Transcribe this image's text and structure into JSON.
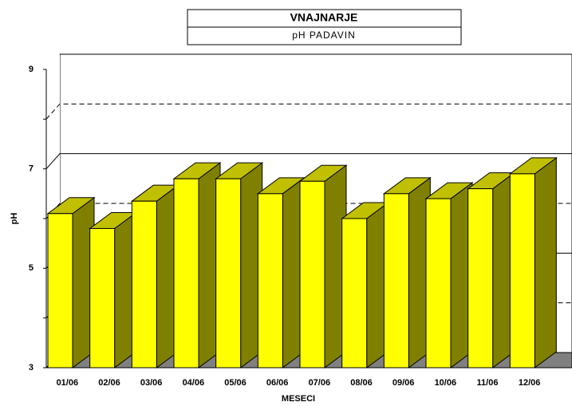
{
  "chart_data": {
    "type": "bar3d",
    "title": "VNAJNARJE",
    "subtitle": "pH PADAVIN",
    "x_label": "MESECI",
    "y_label": "pH",
    "categories": [
      "01/06",
      "02/06",
      "03/06",
      "04/06",
      "05/06",
      "06/06",
      "07/06",
      "08/06",
      "09/06",
      "10/06",
      "11/06",
      "12/06"
    ],
    "values": [
      6.1,
      5.8,
      6.35,
      6.8,
      6.8,
      6.5,
      6.75,
      6.0,
      6.5,
      6.4,
      6.6,
      6.9
    ],
    "color": "#ffff00",
    "side_color": "#808000",
    "top_color": "#c0c000",
    "ylim": [
      3,
      9
    ],
    "yticks": [
      3,
      5,
      7,
      9
    ],
    "minor_yticks": [
      4,
      6,
      8
    ],
    "grid": true
  }
}
